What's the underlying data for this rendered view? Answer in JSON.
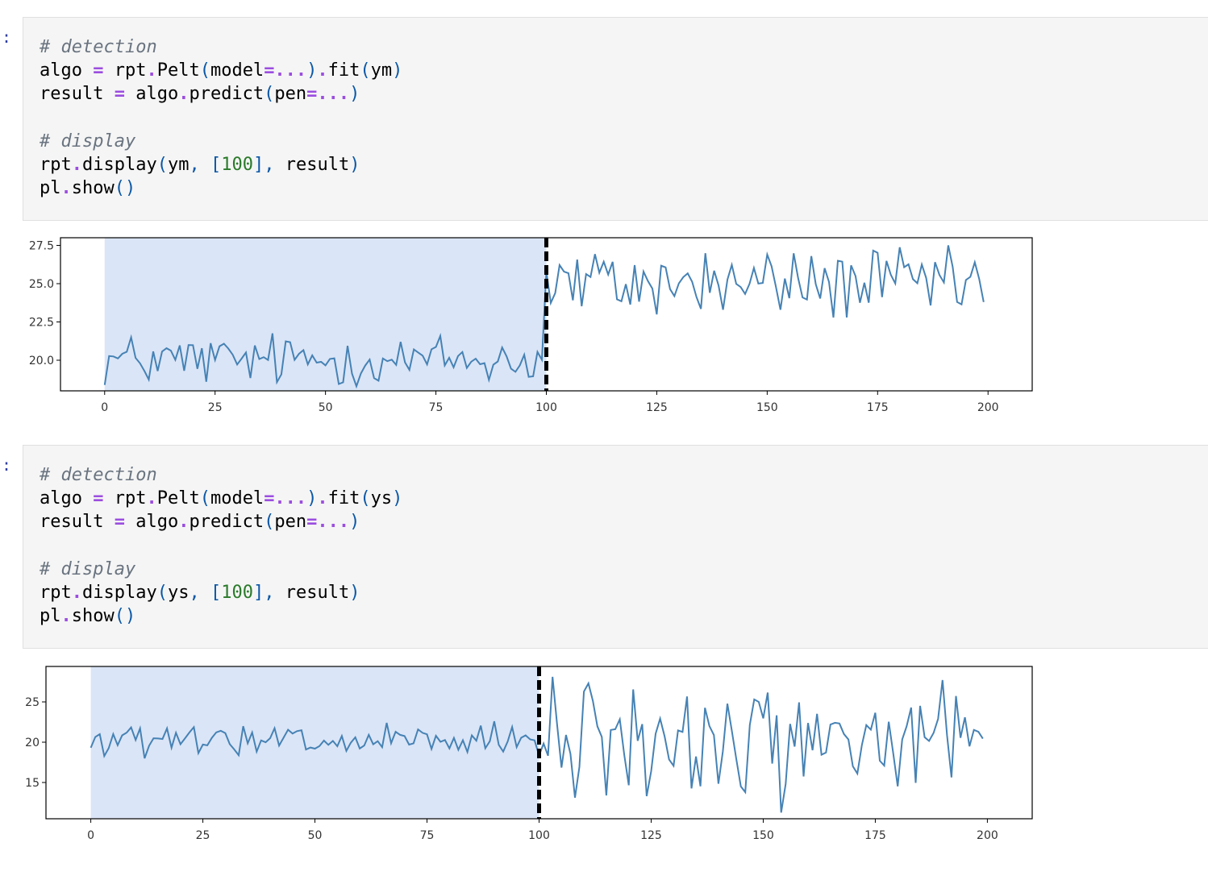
{
  "cells": [
    {
      "prompt": ":",
      "code": [
        {
          "comment": "# detection"
        },
        {
          "tokens": [
            [
              "t",
              "algo "
            ],
            [
              "o",
              "="
            ],
            [
              "t",
              " rpt"
            ],
            [
              "o",
              "."
            ],
            [
              "t",
              "Pelt"
            ],
            [
              "p",
              "("
            ],
            [
              "t",
              "model"
            ],
            [
              "o",
              "=..."
            ],
            [
              "p",
              ")"
            ],
            [
              "o",
              "."
            ],
            [
              "t",
              "fit"
            ],
            [
              "p",
              "("
            ],
            [
              "t",
              "ym"
            ],
            [
              "p",
              ")"
            ]
          ]
        },
        {
          "tokens": [
            [
              "t",
              "result "
            ],
            [
              "o",
              "="
            ],
            [
              "t",
              " algo"
            ],
            [
              "o",
              "."
            ],
            [
              "t",
              "predict"
            ],
            [
              "p",
              "("
            ],
            [
              "t",
              "pen"
            ],
            [
              "o",
              "=..."
            ],
            [
              "p",
              ")"
            ]
          ]
        },
        {
          "tokens": []
        },
        {
          "comment": "# display"
        },
        {
          "tokens": [
            [
              "t",
              "rpt"
            ],
            [
              "o",
              "."
            ],
            [
              "t",
              "display"
            ],
            [
              "p",
              "("
            ],
            [
              "t",
              "ym"
            ],
            [
              "p",
              ", ["
            ],
            [
              "n",
              "100"
            ],
            [
              "p",
              "], "
            ],
            [
              "t",
              "result"
            ],
            [
              "p",
              ")"
            ]
          ]
        },
        {
          "tokens": [
            [
              "t",
              "pl"
            ],
            [
              "o",
              "."
            ],
            [
              "t",
              "show"
            ],
            [
              "p",
              "()"
            ]
          ]
        }
      ]
    },
    {
      "prompt": ":",
      "code": [
        {
          "comment": "# detection"
        },
        {
          "tokens": [
            [
              "t",
              "algo "
            ],
            [
              "o",
              "="
            ],
            [
              "t",
              " rpt"
            ],
            [
              "o",
              "."
            ],
            [
              "t",
              "Pelt"
            ],
            [
              "p",
              "("
            ],
            [
              "t",
              "model"
            ],
            [
              "o",
              "=..."
            ],
            [
              "p",
              ")"
            ],
            [
              "o",
              "."
            ],
            [
              "t",
              "fit"
            ],
            [
              "p",
              "("
            ],
            [
              "t",
              "ys"
            ],
            [
              "p",
              ")"
            ]
          ]
        },
        {
          "tokens": [
            [
              "t",
              "result "
            ],
            [
              "o",
              "="
            ],
            [
              "t",
              " algo"
            ],
            [
              "o",
              "."
            ],
            [
              "t",
              "predict"
            ],
            [
              "p",
              "("
            ],
            [
              "t",
              "pen"
            ],
            [
              "o",
              "=..."
            ],
            [
              "p",
              ")"
            ]
          ]
        },
        {
          "tokens": []
        },
        {
          "comment": "# display"
        },
        {
          "tokens": [
            [
              "t",
              "rpt"
            ],
            [
              "o",
              "."
            ],
            [
              "t",
              "display"
            ],
            [
              "p",
              "("
            ],
            [
              "t",
              "ys"
            ],
            [
              "p",
              ", ["
            ],
            [
              "n",
              "100"
            ],
            [
              "p",
              "], "
            ],
            [
              "t",
              "result"
            ],
            [
              "p",
              ")"
            ]
          ]
        },
        {
          "tokens": [
            [
              "t",
              "pl"
            ],
            [
              "o",
              "."
            ],
            [
              "t",
              "show"
            ],
            [
              "p",
              "()"
            ]
          ]
        }
      ]
    }
  ],
  "chart_data": [
    {
      "type": "line",
      "series_color": "#4682b4",
      "shade_color": "#dae5f7",
      "breakpoint_color": "#000000",
      "true_regime": [
        0,
        100
      ],
      "predicted_breakpoint": 100,
      "xlim": [
        -10,
        210
      ],
      "ylim": [
        18.0,
        28.0
      ],
      "xticks": [
        0,
        25,
        50,
        75,
        100,
        125,
        150,
        175,
        200
      ],
      "xtick_labels": [
        "0",
        "25",
        "50",
        "75",
        "100",
        "125",
        "150",
        "175",
        "200"
      ],
      "yticks": [
        20.0,
        22.5,
        25.0,
        27.5
      ],
      "ytick_labels": [
        "20.0",
        "22.5",
        "25.0",
        "27.5"
      ],
      "mean_before": 20.0,
      "mean_after": 25.0,
      "x": [
        0,
        199
      ],
      "approx_range_before": [
        18.3,
        22.2
      ],
      "approx_range_after": [
        22.1,
        27.5
      ]
    },
    {
      "type": "line",
      "series_color": "#4682b4",
      "shade_color": "#dae5f7",
      "breakpoint_color": "#000000",
      "true_regime": [
        0,
        100
      ],
      "predicted_breakpoint": 100,
      "xlim": [
        -10,
        210
      ],
      "ylim": [
        10.5,
        29.4
      ],
      "xticks": [
        0,
        25,
        50,
        75,
        100,
        125,
        150,
        175,
        200
      ],
      "xtick_labels": [
        "0",
        "25",
        "50",
        "75",
        "100",
        "125",
        "150",
        "175",
        "200"
      ],
      "yticks": [
        15,
        20,
        25
      ],
      "ytick_labels": [
        "15",
        "20",
        "25"
      ],
      "mean_before": 20.0,
      "mean_after": 20.0,
      "x": [
        0,
        199
      ],
      "approx_range_before": [
        18.0,
        22.8
      ],
      "approx_range_after": [
        11.2,
        28.3
      ]
    }
  ]
}
